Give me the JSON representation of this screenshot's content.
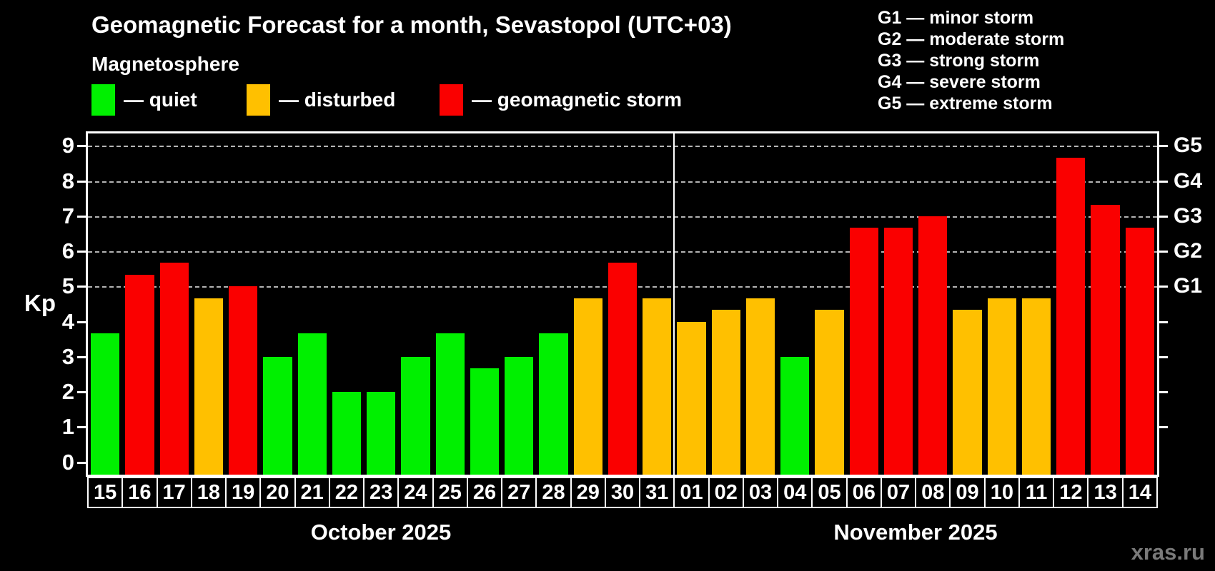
{
  "title": "Geomagnetic Forecast for a month, Sevastopol (UTC+03)",
  "subtitle": "Magnetosphere",
  "legend": [
    {
      "status": "quiet",
      "label": "— quiet"
    },
    {
      "status": "disturbed",
      "label": "— disturbed"
    },
    {
      "status": "storm",
      "label": "— geomagnetic storm"
    }
  ],
  "g_legend": [
    {
      "code": "G1",
      "label": "G1 — minor storm"
    },
    {
      "code": "G2",
      "label": "G2 — moderate storm"
    },
    {
      "code": "G3",
      "label": "G3 — strong storm"
    },
    {
      "code": "G4",
      "label": "G4 — severe storm"
    },
    {
      "code": "G5",
      "label": "G5 — extreme storm"
    }
  ],
  "colors": {
    "quiet": "#00f000",
    "disturbed": "#ffc000",
    "storm": "#fa0000",
    "background": "#000000",
    "grid": "#b4b4b4",
    "frame": "#ffffff",
    "watermark": "#7a7a7a"
  },
  "watermark": "xras.ru",
  "chart_data": {
    "type": "bar",
    "ylabel": "Kp",
    "ylim": [
      -0.35,
      9.35
    ],
    "y_ticks": [
      0,
      1,
      2,
      3,
      4,
      5,
      6,
      7,
      8,
      9
    ],
    "grid_levels": [
      5,
      6,
      7,
      8,
      9
    ],
    "right_axis_ticks": [
      1,
      2,
      3,
      4,
      5,
      6,
      7,
      8,
      9
    ],
    "g_levels": [
      {
        "kp": 5,
        "label": "G1"
      },
      {
        "kp": 6,
        "label": "G2"
      },
      {
        "kp": 7,
        "label": "G3"
      },
      {
        "kp": 8,
        "label": "G4"
      },
      {
        "kp": 9,
        "label": "G5"
      }
    ],
    "months": [
      {
        "label": "October 2025",
        "days": [
          {
            "day": "15",
            "kp": 3.67,
            "status": "quiet"
          },
          {
            "day": "16",
            "kp": 5.33,
            "status": "storm"
          },
          {
            "day": "17",
            "kp": 5.67,
            "status": "storm"
          },
          {
            "day": "18",
            "kp": 4.67,
            "status": "disturbed"
          },
          {
            "day": "19",
            "kp": 5.0,
            "status": "storm"
          },
          {
            "day": "20",
            "kp": 3.0,
            "status": "quiet"
          },
          {
            "day": "21",
            "kp": 3.67,
            "status": "quiet"
          },
          {
            "day": "22",
            "kp": 2.0,
            "status": "quiet"
          },
          {
            "day": "23",
            "kp": 2.0,
            "status": "quiet"
          },
          {
            "day": "24",
            "kp": 3.0,
            "status": "quiet"
          },
          {
            "day": "25",
            "kp": 3.67,
            "status": "quiet"
          },
          {
            "day": "26",
            "kp": 2.67,
            "status": "quiet"
          },
          {
            "day": "27",
            "kp": 3.0,
            "status": "quiet"
          },
          {
            "day": "28",
            "kp": 3.67,
            "status": "quiet"
          },
          {
            "day": "29",
            "kp": 4.67,
            "status": "disturbed"
          },
          {
            "day": "30",
            "kp": 5.67,
            "status": "storm"
          },
          {
            "day": "31",
            "kp": 4.67,
            "status": "disturbed"
          }
        ]
      },
      {
        "label": "November 2025",
        "days": [
          {
            "day": "01",
            "kp": 4.0,
            "status": "disturbed"
          },
          {
            "day": "02",
            "kp": 4.33,
            "status": "disturbed"
          },
          {
            "day": "03",
            "kp": 4.67,
            "status": "disturbed"
          },
          {
            "day": "04",
            "kp": 3.0,
            "status": "quiet"
          },
          {
            "day": "05",
            "kp": 4.33,
            "status": "disturbed"
          },
          {
            "day": "06",
            "kp": 6.67,
            "status": "storm"
          },
          {
            "day": "07",
            "kp": 6.67,
            "status": "storm"
          },
          {
            "day": "08",
            "kp": 7.0,
            "status": "storm"
          },
          {
            "day": "09",
            "kp": 4.33,
            "status": "disturbed"
          },
          {
            "day": "10",
            "kp": 4.67,
            "status": "disturbed"
          },
          {
            "day": "11",
            "kp": 4.67,
            "status": "disturbed"
          },
          {
            "day": "12",
            "kp": 8.67,
            "status": "storm"
          },
          {
            "day": "13",
            "kp": 7.33,
            "status": "storm"
          },
          {
            "day": "14",
            "kp": 6.67,
            "status": "storm"
          }
        ]
      }
    ]
  }
}
